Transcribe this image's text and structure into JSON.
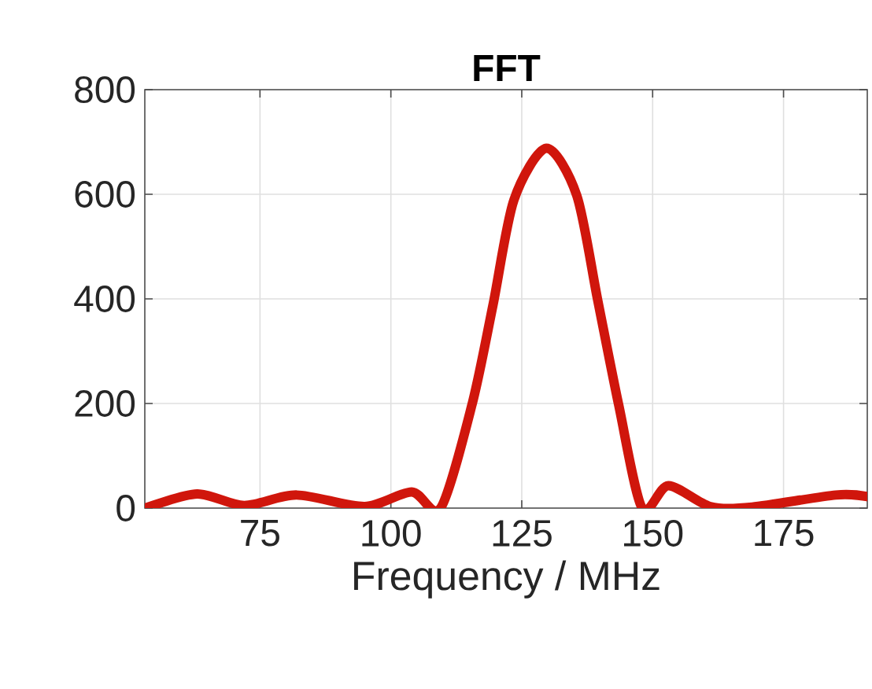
{
  "chart_data": {
    "type": "line",
    "title": "FFT",
    "xlabel": "Frequency / MHz",
    "x": [
      53.1,
      63,
      72,
      82,
      95,
      104,
      109.5,
      115.5,
      119.5,
      123.5,
      129.7,
      135.5,
      139.5,
      143.5,
      148,
      153,
      161,
      169,
      185,
      191
    ],
    "values": [
      0,
      27,
      5,
      25,
      3,
      31,
      0,
      198,
      388,
      589,
      688,
      598,
      398,
      198,
      0,
      43,
      3,
      2,
      25,
      22
    ],
    "color": "#d0160c",
    "xlim": [
      53,
      191
    ],
    "ylim": [
      0,
      800
    ],
    "xticks": [
      75,
      100,
      125,
      150,
      175
    ],
    "yticks": [
      0,
      200,
      400,
      600,
      800
    ],
    "grid": true,
    "marker": "none",
    "line_style": "solid"
  }
}
